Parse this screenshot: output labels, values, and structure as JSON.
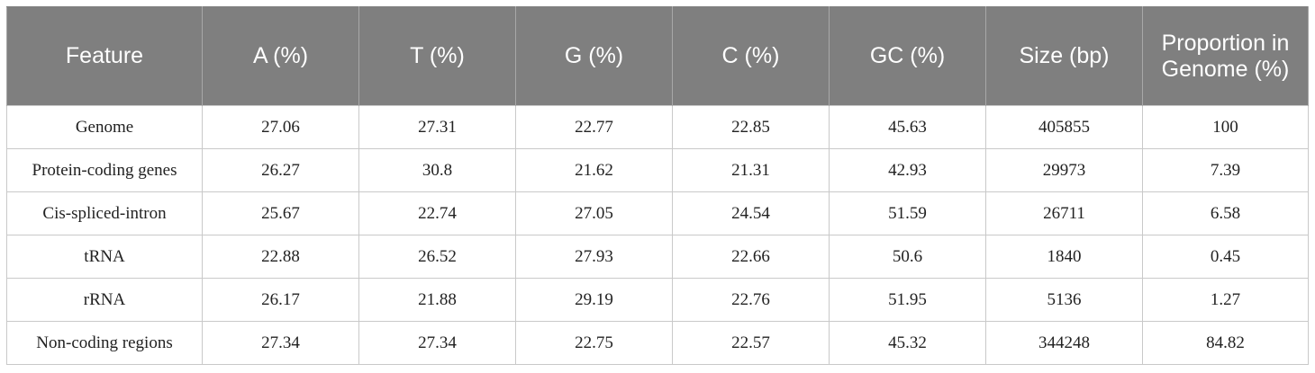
{
  "table": {
    "headers": [
      "Feature",
      "A (%)",
      "T (%)",
      "G (%)",
      "C (%)",
      "GC (%)",
      "Size (bp)",
      "Proportion in Genome (%)"
    ],
    "rows": [
      [
        "Genome",
        "27.06",
        "27.31",
        "22.77",
        "22.85",
        "45.63",
        "405855",
        "100"
      ],
      [
        "Protein-coding genes",
        "26.27",
        "30.8",
        "21.62",
        "21.31",
        "42.93",
        "29973",
        "7.39"
      ],
      [
        "Cis-spliced-intron",
        "25.67",
        "22.74",
        "27.05",
        "24.54",
        "51.59",
        "26711",
        "6.58"
      ],
      [
        "tRNA",
        "22.88",
        "26.52",
        "27.93",
        "22.66",
        "50.6",
        "1840",
        "0.45"
      ],
      [
        "rRNA",
        "26.17",
        "21.88",
        "29.19",
        "22.76",
        "51.95",
        "5136",
        "1.27"
      ],
      [
        "Non-coding regions",
        "27.34",
        "27.34",
        "22.75",
        "22.57",
        "45.32",
        "344248",
        "84.82"
      ]
    ]
  }
}
